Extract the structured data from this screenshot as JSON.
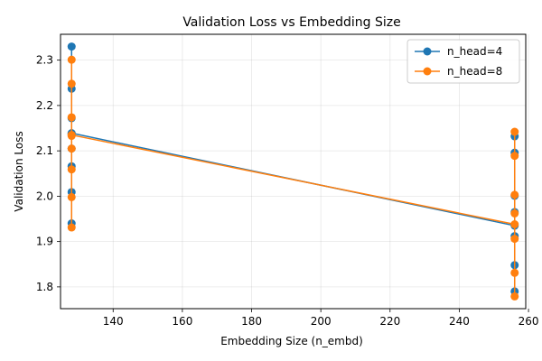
{
  "chart_data": {
    "type": "line",
    "title": "Validation Loss vs Embedding Size",
    "xlabel": "Embedding Size (n_embd)",
    "ylabel": "Validation Loss",
    "xlim": [
      124.8,
      259.2
    ],
    "ylim": [
      1.752,
      2.357
    ],
    "xticks": [
      140,
      160,
      180,
      200,
      220,
      240,
      260
    ],
    "yticks": [
      1.8,
      1.9,
      2.0,
      2.1,
      2.2,
      2.3
    ],
    "grid": true,
    "legend_position": "top-right",
    "series": [
      {
        "name": "n_head=4",
        "color": "#1f77b4",
        "points": [
          {
            "x": 128,
            "y": 2.33
          },
          {
            "x": 128,
            "y": 2.237
          },
          {
            "x": 128,
            "y": 2.172
          },
          {
            "x": 128,
            "y": 2.137
          },
          {
            "x": 128,
            "y": 2.105
          },
          {
            "x": 128,
            "y": 2.066
          },
          {
            "x": 128,
            "y": 2.009
          },
          {
            "x": 128,
            "y": 1.94
          },
          {
            "x": 128,
            "y": 2.139
          },
          {
            "x": 256,
            "y": 1.935
          },
          {
            "x": 256,
            "y": 1.912
          },
          {
            "x": 256,
            "y": 1.848
          },
          {
            "x": 256,
            "y": 1.79
          },
          {
            "x": 256,
            "y": 1.965
          },
          {
            "x": 256,
            "y": 2.001
          },
          {
            "x": 256,
            "y": 2.096
          },
          {
            "x": 256,
            "y": 2.132
          }
        ]
      },
      {
        "name": "n_head=8",
        "color": "#ff7f0e",
        "points": [
          {
            "x": 128,
            "y": 2.301
          },
          {
            "x": 128,
            "y": 2.248
          },
          {
            "x": 128,
            "y": 2.174
          },
          {
            "x": 128,
            "y": 2.133
          },
          {
            "x": 128,
            "y": 2.105
          },
          {
            "x": 128,
            "y": 2.059
          },
          {
            "x": 128,
            "y": 1.998
          },
          {
            "x": 128,
            "y": 1.931
          },
          {
            "x": 128,
            "y": 2.135
          },
          {
            "x": 256,
            "y": 1.938
          },
          {
            "x": 256,
            "y": 1.906
          },
          {
            "x": 256,
            "y": 1.831
          },
          {
            "x": 256,
            "y": 1.779
          },
          {
            "x": 256,
            "y": 1.962
          },
          {
            "x": 256,
            "y": 2.003
          },
          {
            "x": 256,
            "y": 2.089
          },
          {
            "x": 256,
            "y": 2.142
          }
        ]
      }
    ]
  }
}
